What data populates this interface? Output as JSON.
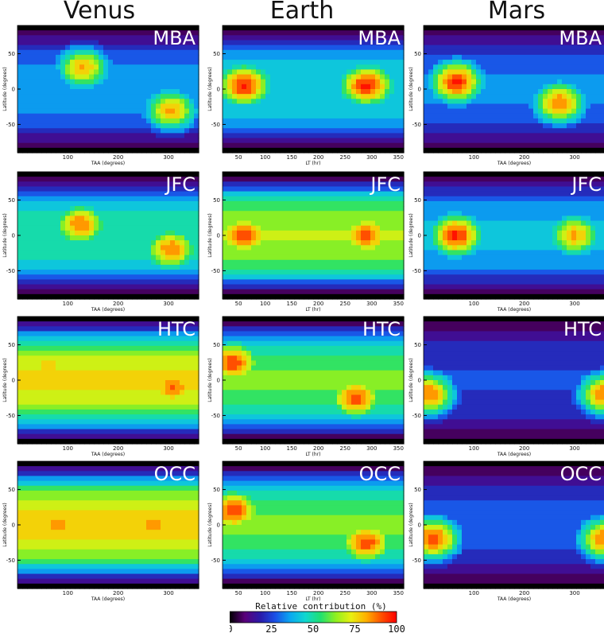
{
  "columns": [
    "Venus",
    "Earth",
    "Mars"
  ],
  "colorbar": {
    "label": "Relative contribution (%)",
    "ticks": [
      0,
      25,
      50,
      75,
      100
    ],
    "stops": [
      "#000000",
      "#5a007a",
      "#2a1aa8",
      "#1a50e6",
      "#0aa8f0",
      "#10d8d0",
      "#20e070",
      "#90f020",
      "#e8f010",
      "#ffb000",
      "#ff5000",
      "#ff0000"
    ]
  },
  "chart_data": [
    {
      "type": "heatmap",
      "planet": "Venus",
      "label": "MBA",
      "xlabel": "TAA (degrees)",
      "ylabel": "Latitude (degrees)",
      "xlim": [
        0,
        360
      ],
      "ylim": [
        -90,
        90
      ],
      "xticks": [
        100,
        200,
        300
      ],
      "yticks": [
        -50,
        0,
        50
      ],
      "hotspots": [
        [
          130,
          30,
          82
        ],
        [
          305,
          -30,
          82
        ]
      ],
      "background": 30,
      "black_top": [
        [
          90,
          115
        ]
      ]
    },
    {
      "type": "heatmap",
      "planet": "Earth",
      "label": "MBA",
      "xlabel": "LT (hr)",
      "ylabel": "Latitude (degrees)",
      "xlim": [
        20,
        360
      ],
      "ylim": [
        -90,
        90
      ],
      "xticks": [
        50,
        100,
        150,
        200,
        250,
        300,
        350
      ],
      "yticks": [
        -50,
        0,
        50
      ],
      "hotspots": [
        [
          60,
          5,
          96
        ],
        [
          290,
          5,
          96
        ]
      ],
      "background": 40,
      "black_top": [
        [
          20,
          360
        ]
      ]
    },
    {
      "type": "heatmap",
      "planet": "Mars",
      "label": "MBA",
      "xlabel": "TAA (degrees)",
      "ylabel": "Latitude (degrees)",
      "xlim": [
        0,
        360
      ],
      "ylim": [
        -90,
        90
      ],
      "xticks": [
        100,
        200,
        300
      ],
      "yticks": [
        -50,
        0,
        50
      ],
      "hotspots": [
        [
          65,
          10,
          96
        ],
        [
          270,
          -20,
          88
        ]
      ],
      "background": 28,
      "black_top": []
    },
    {
      "type": "heatmap",
      "planet": "Venus",
      "label": "JFC",
      "xlabel": "TAA (degrees)",
      "ylabel": "Latitude (degrees)",
      "xlim": [
        0,
        360
      ],
      "ylim": [
        -90,
        90
      ],
      "xticks": [
        100,
        200,
        300
      ],
      "yticks": [
        -50,
        0,
        50
      ],
      "hotspots": [
        [
          125,
          15,
          88
        ],
        [
          305,
          -20,
          88
        ]
      ],
      "background": 45,
      "black_top": [
        [
          120,
          130
        ]
      ]
    },
    {
      "type": "heatmap",
      "planet": "Earth",
      "label": "JFC",
      "xlabel": "LT (hr)",
      "ylabel": "Latitude (degrees)",
      "xlim": [
        20,
        360
      ],
      "ylim": [
        -90,
        90
      ],
      "xticks": [
        50,
        100,
        150,
        200,
        250,
        300,
        350
      ],
      "yticks": [
        -50,
        0,
        50
      ],
      "hotspots": [
        [
          60,
          0,
          94
        ],
        [
          290,
          0,
          92
        ]
      ],
      "background": 62,
      "black_top": []
    },
    {
      "type": "heatmap",
      "planet": "Mars",
      "label": "JFC",
      "xlabel": "TAA (degrees)",
      "ylabel": "Latitude (degrees)",
      "xlim": [
        0,
        360
      ],
      "ylim": [
        -90,
        90
      ],
      "xticks": [
        100,
        200,
        300
      ],
      "yticks": [
        -50,
        0,
        50
      ],
      "hotspots": [
        [
          65,
          0,
          96
        ],
        [
          300,
          0,
          82
        ]
      ],
      "background": 35,
      "black_top": []
    },
    {
      "type": "heatmap",
      "planet": "Venus",
      "label": "HTC",
      "xlabel": "TAA (degrees)",
      "ylabel": "Latitude (degrees)",
      "xlim": [
        0,
        360
      ],
      "ylim": [
        -90,
        90
      ],
      "xticks": [
        100,
        200,
        300
      ],
      "yticks": [
        -50,
        0,
        50
      ],
      "hotspots": [
        [
          310,
          -10,
          88
        ],
        [
          60,
          20,
          80
        ]
      ],
      "background": 70,
      "black_top": [
        [
          0,
          360
        ]
      ]
    },
    {
      "type": "heatmap",
      "planet": "Earth",
      "label": "HTC",
      "xlabel": "LT (hr)",
      "ylabel": "Latitude (degrees)",
      "xlim": [
        20,
        360
      ],
      "ylim": [
        -90,
        90
      ],
      "xticks": [
        50,
        100,
        150,
        200,
        250,
        300,
        350
      ],
      "yticks": [
        -50,
        0,
        50
      ],
      "hotspots": [
        [
          40,
          25,
          94
        ],
        [
          270,
          -25,
          92
        ]
      ],
      "background": 55,
      "black_top": [
        [
          110,
          280
        ]
      ]
    },
    {
      "type": "heatmap",
      "planet": "Mars",
      "label": "HTC",
      "xlabel": "TAA (degrees)",
      "ylabel": "Latitude (degrees)",
      "xlim": [
        0,
        360
      ],
      "ylim": [
        -90,
        90
      ],
      "xticks": [
        100,
        200,
        300
      ],
      "yticks": [
        -50,
        0,
        50
      ],
      "hotspots": [
        [
          10,
          -20,
          88
        ],
        [
          360,
          -20,
          88
        ]
      ],
      "background": 20,
      "black_top": [
        [
          0,
          360
        ]
      ]
    },
    {
      "type": "heatmap",
      "planet": "Venus",
      "label": "OCC",
      "xlabel": "TAA (degrees)",
      "ylabel": "Latitude (degrees)",
      "xlim": [
        0,
        360
      ],
      "ylim": [
        -90,
        90
      ],
      "xticks": [
        100,
        200,
        300
      ],
      "yticks": [
        -50,
        0,
        50
      ],
      "hotspots": [
        [
          80,
          0,
          84
        ],
        [
          270,
          0,
          88
        ]
      ],
      "background": 72,
      "black_top": []
    },
    {
      "type": "heatmap",
      "planet": "Earth",
      "label": "OCC",
      "xlabel": "LT (hr)",
      "ylabel": "Latitude (degrees)",
      "xlim": [
        20,
        360
      ],
      "ylim": [
        -90,
        90
      ],
      "xticks": [
        50,
        100,
        150,
        200,
        250,
        300,
        350
      ],
      "yticks": [
        -50,
        0,
        50
      ],
      "hotspots": [
        [
          40,
          20,
          94
        ],
        [
          290,
          -25,
          92
        ]
      ],
      "background": 55,
      "black_top": [
        [
          120,
          360
        ]
      ]
    },
    {
      "type": "heatmap",
      "planet": "Mars",
      "label": "OCC",
      "xlabel": "TAA (degrees)",
      "ylabel": "Latitude (degrees)",
      "xlim": [
        0,
        360
      ],
      "ylim": [
        -90,
        90
      ],
      "xticks": [
        100,
        200,
        300
      ],
      "yticks": [
        -50,
        0,
        50
      ],
      "hotspots": [
        [
          20,
          -20,
          92
        ],
        [
          360,
          -20,
          88
        ]
      ],
      "background": 22,
      "black_top": [
        [
          0,
          360
        ]
      ]
    }
  ]
}
